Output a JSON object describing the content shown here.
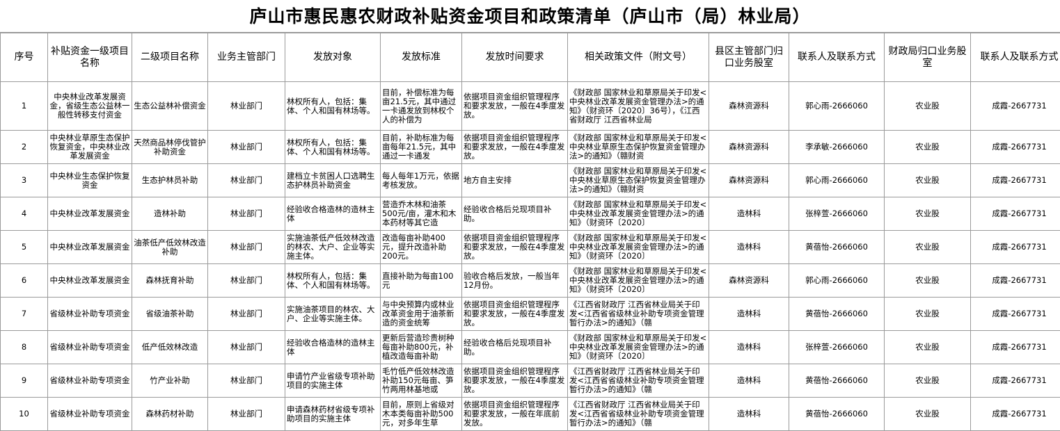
{
  "title": "庐山市惠民惠农财政补贴资金项目和政策清单（庐山市（局）林业局）",
  "table": {
    "header": [
      "序号",
      "补贴资金一级项目名称",
      "二级项目名称",
      "业务主管部门",
      "发放对象",
      "发放标准",
      "发放时间要求",
      "相关政策文件（附文号）",
      "县区主管部门归口业务股室",
      "联系人及联系方式",
      "财政局归口业务股室",
      "联系人及联系方式"
    ],
    "rows": [
      [
        1,
        "中央林业改革发展资金，省级生态公益林一般性转移支付资金",
        "生态公益林补偿资金",
        "林业部门",
        "林权所有人，包括：集体、个人和国有林场等。",
        "目前，补偿标准为每亩21.5元，其中通过一卡通发放到林权个人的补偿为",
        "依据项目资金组织管理程序和要求发放，一般在4季度发放。",
        "《财政部 国家林业和草原局关于印发<中央林业改革发展资金管理办法>的通知》（财资环〔2020〕36号），《江西省财政厅 江西省林业局",
        "森林资源科",
        "郭心雨-2666060",
        "农业股",
        "成霞-2667731"
      ],
      [
        2,
        "中央林业草原生态保护恢复资金，中央林业改革发展资金",
        "天然商品林停伐管护补助资金",
        "林业部门",
        "林权所有人，包括：集体、个人和国有林场等。",
        "目前，补助标准为每亩每年21.5元，其中通过一卡通发",
        "依据项目资金组织管理程序和要求发放，一般在4季度发放。",
        "《财政部 国家林业和草原局关于印发<中央林业草原生态保护恢复资金管理办法>的通知》（赣财资",
        "森林资源科",
        "李承敏-2666060",
        "农业股",
        "成霞-2667731"
      ],
      [
        3,
        "中央林业生态保护恢复资金",
        "生态护林员补助",
        "林业部门",
        "建档立卡贫困人口选聘生态护林员补助资金",
        "每人每年1万元，依据考核发放。",
        "地方自主安排",
        "《财政部 国家林业和草原局关于印发<中央林业草原生态保护恢复资金管理办法>的通知》（赣财资",
        "森林资源科",
        "郭心雨-2666060",
        "农业股",
        "成霞-2667731"
      ],
      [
        4,
        "中央林业改革发展资金",
        "造林补助",
        "林业部门",
        "经验收合格造林的造林主体",
        "营造乔木林和油茶500元/亩，灌木和木本药材等其它造",
        "经验收合格后兑现项目补助。",
        "《财政部 国家林业和草原局关于印发<中央林业改革发展资金管理办法>的通知》（财资环〔2020〕",
        "造林科",
        "张梓萱-2666060",
        "农业股",
        "成霞-2667731"
      ],
      [
        5,
        "中央林业改革发展资金",
        "油茶低产低效林改造补助",
        "林业部门",
        "实施油茶低产低效林改造的林农、大户、企业等实施主体。",
        "改造每亩补助400元，提升改造补助200元。",
        "依据项目资金组织管理程序和要求发放，一般在4季度发放。",
        "《财政部 国家林业和草原局关于印发<中央林业改革发展资金管理办法>的通知》（财资环〔2020〕",
        "造林科",
        "黄蓓怡-2666060",
        "农业股",
        "成霞-2667731"
      ],
      [
        6,
        "中央林业改革发展资金",
        "森林抚育补助",
        "林业部门",
        "林权所有人，包括：集体、个人和国有林场等。",
        "直接补助为每亩100元",
        "验收合格后发放，一般当年12月份。",
        "《财政部 国家林业和草原局关于印发<中央林业改革发展资金管理办法>的通知》（财资环〔2020〕",
        "森林资源科",
        "郭心雨-2666060",
        "农业股",
        "成霞-2667731"
      ],
      [
        7,
        "省级林业补助专项资金",
        "省级油茶补助",
        "林业部门",
        "实施油茶项目的林农、大户、企业等实施主体。",
        "与中央预算内或林业改革资金用于油茶新造的资金统筹",
        "依据项目资金组织管理程序和要求发放，一般在4季度发放。",
        "《江西省财政厅 江西省林业局关于印发<江西省省级林业补助专项资金管理暂行办法>的通知》（赣",
        "造林科",
        "黄蓓怡-2666060",
        "农业股",
        "成霞-2667731"
      ],
      [
        8,
        "省级林业补助专项资金",
        "低产低效林改造",
        "林业部门",
        "经验收合格造林的造林主体",
        "更新后营造珍贵树种每亩补助800元，补植改造每亩补助",
        "经验收合格后兑现项目补助。",
        "《财政部 国家林业和草原局关于印发<中央林业改革发展资金管理办法>的通知》（财资环〔2020〕",
        "造林科",
        "张梓萱-2666060",
        "农业股",
        "成霞-2667731"
      ],
      [
        9,
        "省级林业补助专项资金",
        "竹产业补助",
        "林业部门",
        "申请竹产业省级专项补助项目的实施主体",
        "毛竹低产低效林改造补助150元每亩、笋竹两用林基地或",
        "依据项目资金组织管理程序和要求发放，一般在4季度发放。",
        "《江西省财政厅 江西省林业局关于印发<江西省省级林业补助专项资金管理暂行办法>的通知》（赣",
        "造林科",
        "黄蓓怡-2666060",
        "农业股",
        "成霞-2667731"
      ],
      [
        10,
        "省级林业补助专项资金",
        "森林药材补助",
        "林业部门",
        "申请森林药材省级专项补助项目的实施主体",
        "目前，原则上省级对木本类每亩补助500元，对多年生草",
        "依据项目资金组织管理程序和要求发放，一般在年底前发放。",
        "《江西省财政厅 江西省林业局关于印发<江西省省级林业补助专项资金管理暂行办法>的通知》（赣",
        "造林科",
        "黄蓓怡-2666060",
        "农业股",
        "成霞-2667731"
      ]
    ]
  }
}
